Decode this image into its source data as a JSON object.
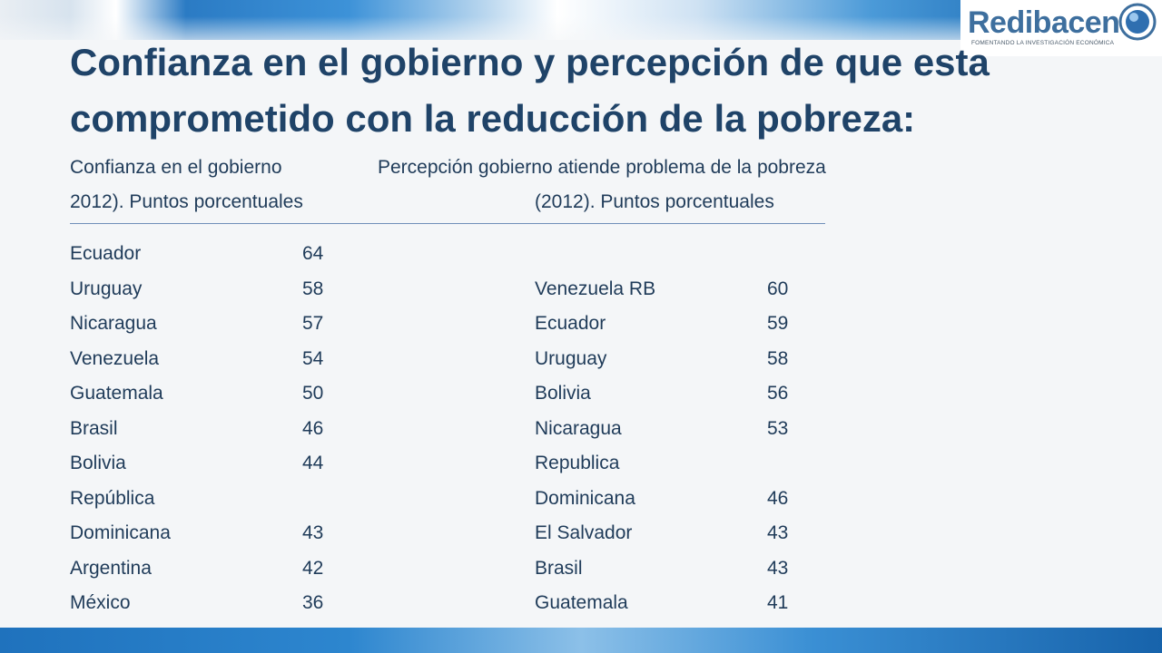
{
  "logo": {
    "name": "Redibacen",
    "tagline": "FOMENTANDO LA INVESTIGACIÓN ECONÓMICA"
  },
  "title": {
    "line1": "Confianza en el gobierno y percepción de que esta",
    "line2": "comprometido con la reducción de la pobreza:"
  },
  "left_table": {
    "header_line1": "Confianza en el gobierno",
    "header_line2": "2012).  Puntos porcentuales",
    "rows": [
      {
        "country": "Ecuador",
        "value": "64"
      },
      {
        "country": "Uruguay",
        "value": "58"
      },
      {
        "country": "Nicaragua",
        "value": "57"
      },
      {
        "country": "Venezuela",
        "value": "54"
      },
      {
        "country": "Guatemala",
        "value": "50"
      },
      {
        "country": "Brasil",
        "value": "46"
      },
      {
        "country": "Bolivia",
        "value": "44"
      },
      {
        "country": "República",
        "value": ""
      },
      {
        "country": "Dominicana",
        "value": "43"
      },
      {
        "country": "Argentina",
        "value": "42"
      },
      {
        "country": "México",
        "value": "36"
      }
    ]
  },
  "right_table": {
    "header_line1": "Percepción gobierno atiende problema de la pobreza",
    "header_line2": "(2012). Puntos porcentuales",
    "rows": [
      {
        "country": "Venezuela RB",
        "value": "60"
      },
      {
        "country": "Ecuador",
        "value": "59"
      },
      {
        "country": "Uruguay",
        "value": "58"
      },
      {
        "country": "Bolivia",
        "value": "56"
      },
      {
        "country": "Nicaragua",
        "value": "53"
      },
      {
        "country": "Republica",
        "value": ""
      },
      {
        "country": "Dominicana",
        "value": "46"
      },
      {
        "country": "El Salvador",
        "value": "43"
      },
      {
        "country": "Brasil",
        "value": "43"
      },
      {
        "country": "Guatemala",
        "value": "41"
      }
    ]
  }
}
